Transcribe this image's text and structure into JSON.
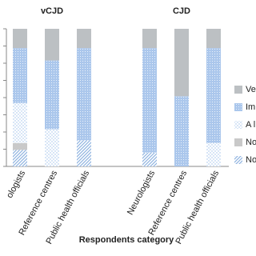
{
  "chart_data": {
    "type": "stacked-bar",
    "group_labels": [
      "vCJD",
      "CJD"
    ],
    "categories": [
      "ologists",
      "Reference centres",
      "Public health officials",
      "Neurologists",
      "Reference centres",
      "Public health officials"
    ],
    "x_label": "Respondents category",
    "ylim": [
      0,
      100
    ],
    "yticks": [
      0,
      12.5,
      25,
      37.5,
      50,
      62.5,
      75,
      87.5,
      100
    ],
    "series": [
      {
        "name": "No",
        "color": "#8fb3e0",
        "pattern": "hatch",
        "values": [
          12,
          0,
          19,
          10,
          0,
          0
        ]
      },
      {
        "name": "No",
        "color": "#c9c9c9",
        "values": [
          5,
          0,
          0,
          0,
          0,
          0
        ]
      },
      {
        "name": "A l",
        "color": "#9ec0ea",
        "pattern": "dots",
        "values": [
          29,
          27,
          0,
          0,
          0,
          17
        ]
      },
      {
        "name": "Im",
        "color": "#abc7ec",
        "values": [
          40,
          50,
          67,
          76,
          51,
          69
        ]
      },
      {
        "name": "Ve",
        "color": "#bcc0c3",
        "values": [
          14,
          23,
          14,
          14,
          49,
          14
        ]
      }
    ]
  }
}
